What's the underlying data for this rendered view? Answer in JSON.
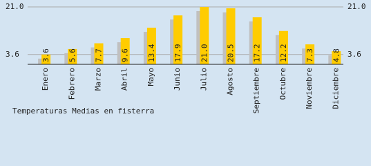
{
  "chart_data": {
    "type": "bar",
    "title": "Temperaturas Medias en fisterra",
    "categories": [
      "Enero",
      "Febrero",
      "Marzo",
      "Abril",
      "Mayo",
      "Junio",
      "Julio",
      "Agosto",
      "Septiembre",
      "Octubre",
      "Noviembre",
      "Diciembre"
    ],
    "values": [
      3.6,
      5.6,
      7.7,
      9.6,
      13.4,
      17.9,
      21.0,
      20.5,
      17.2,
      12.2,
      7.3,
      4.8
    ],
    "value_labels": [
      "3.6",
      "5.6",
      "7.7",
      "9.6",
      "13.4",
      "17.9",
      "21.0",
      "20.5",
      "17.2",
      "12.2",
      "7.3",
      "4.8"
    ],
    "color": "#ffcc00",
    "shadow_color": "#c0c0c0",
    "ylim": [
      0,
      21
    ],
    "yticks": [
      3.6,
      {
        "value": 21,
        "label": "21.0"
      }
    ],
    "grid": true
  }
}
